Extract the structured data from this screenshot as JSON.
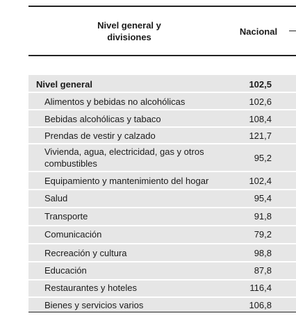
{
  "table": {
    "header": {
      "col1": "Nivel general y\ndivisiones",
      "col2": "Nacional"
    },
    "rows": [
      {
        "label": "Nivel general",
        "value": "102,5"
      },
      {
        "label": "Alimentos y bebidas no alcohólicas",
        "value": "102,6"
      },
      {
        "label": "Bebidas alcohólicas y tabaco",
        "value": "108,4"
      },
      {
        "label": "Prendas de vestir y calzado",
        "value": "121,7"
      },
      {
        "label": "Vivienda, agua, electricidad, gas y otros combustibles",
        "value": "95,2"
      },
      {
        "label": "Equipamiento y mantenimiento del hogar",
        "value": "102,4"
      },
      {
        "label": "Salud",
        "value": "95,4"
      },
      {
        "label": "Transporte",
        "value": "91,8"
      },
      {
        "label": "Comunicación",
        "value": "79,2"
      },
      {
        "label": "Recreación y cultura",
        "value": "98,8"
      },
      {
        "label": "Educación",
        "value": "87,8"
      },
      {
        "label": "Restaurantes y hoteles",
        "value": "116,4"
      },
      {
        "label": "Bienes y servicios varios",
        "value": "106,8"
      }
    ]
  }
}
